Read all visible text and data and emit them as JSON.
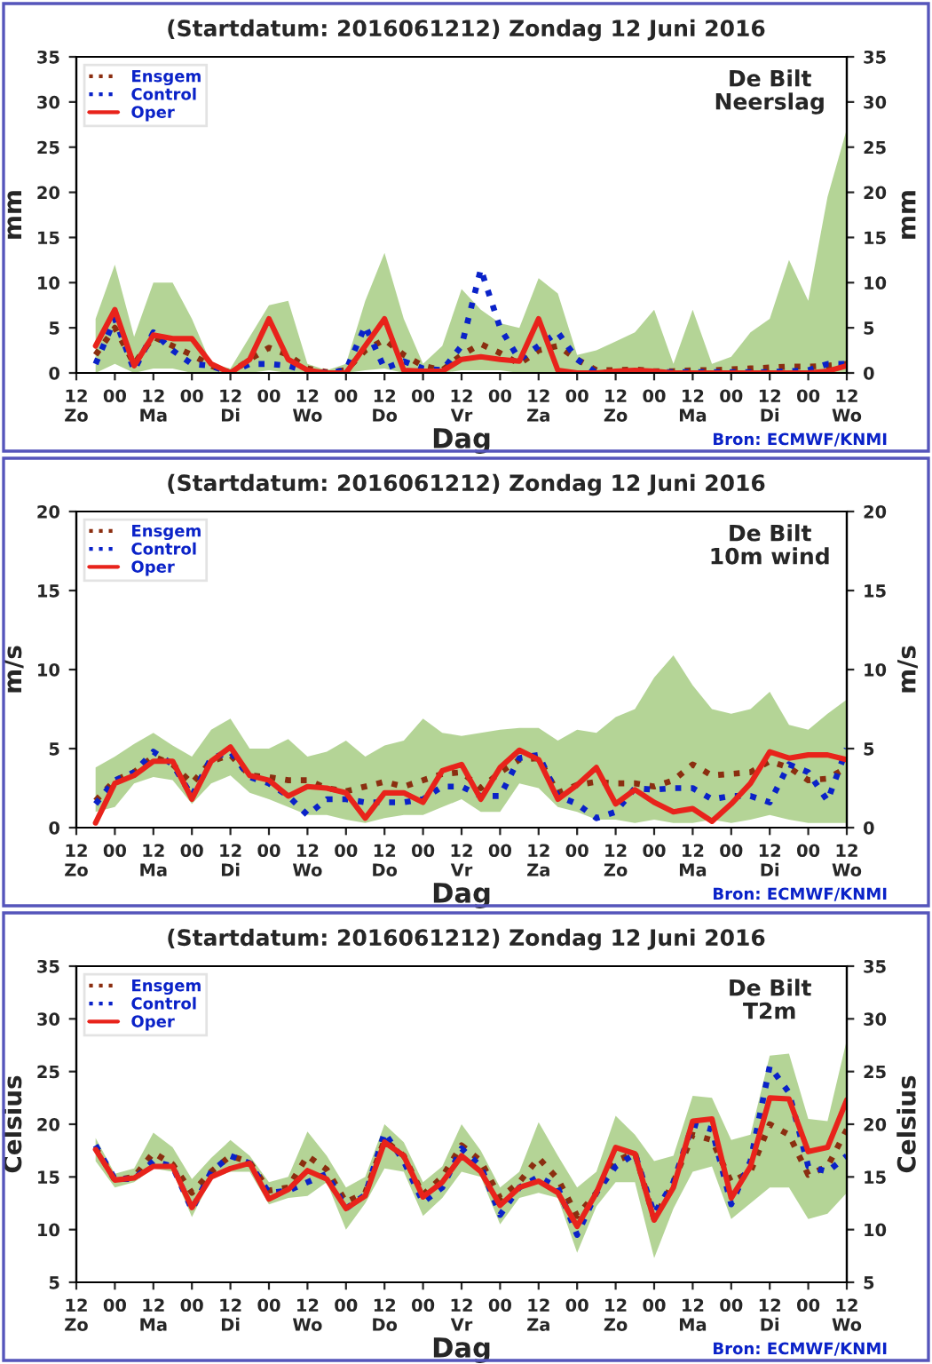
{
  "chart_data": [
    {
      "type": "line",
      "title": "(Startdatum: 2016061212) Zondag 12 Juni 2016",
      "xlabel": "Dag",
      "ylabel": "mm",
      "y2label": "mm",
      "annotations": [
        "De Bilt\nNeerslag",
        "Bron: ECMWF/KNMI"
      ],
      "x": [
        "2016-06-12T18:00",
        "2016-06-13T00:00",
        "2016-06-13T06:00",
        "2016-06-13T12:00",
        "2016-06-13T18:00",
        "2016-06-14T00:00",
        "2016-06-14T06:00",
        "2016-06-14T12:00",
        "2016-06-14T18:00",
        "2016-06-15T00:00",
        "2016-06-15T06:00",
        "2016-06-15T12:00",
        "2016-06-15T18:00",
        "2016-06-16T00:00",
        "2016-06-16T06:00",
        "2016-06-16T12:00",
        "2016-06-16T18:00",
        "2016-06-17T00:00",
        "2016-06-17T06:00",
        "2016-06-17T12:00",
        "2016-06-17T18:00",
        "2016-06-18T00:00",
        "2016-06-18T06:00",
        "2016-06-18T12:00",
        "2016-06-18T18:00",
        "2016-06-19T00:00",
        "2016-06-19T06:00",
        "2016-06-19T12:00",
        "2016-06-19T18:00",
        "2016-06-20T00:00",
        "2016-06-20T06:00",
        "2016-06-20T12:00",
        "2016-06-20T18:00",
        "2016-06-21T00:00",
        "2016-06-21T06:00",
        "2016-06-21T12:00",
        "2016-06-21T18:00",
        "2016-06-22T00:00",
        "2016-06-22T06:00",
        "2016-06-22T12:00"
      ],
      "xlim": [
        "2016-06-12T12:00",
        "2016-06-22T12:00"
      ],
      "xticks": [
        {
          "value": "2016-06-12T12:00",
          "label": "12\nZo"
        },
        {
          "value": "2016-06-13T00:00",
          "label": "00"
        },
        {
          "value": "2016-06-13T12:00",
          "label": "12\nMa"
        },
        {
          "value": "2016-06-14T00:00",
          "label": "00"
        },
        {
          "value": "2016-06-14T12:00",
          "label": "12\nDi"
        },
        {
          "value": "2016-06-15T00:00",
          "label": "00"
        },
        {
          "value": "2016-06-15T12:00",
          "label": "12\nWo"
        },
        {
          "value": "2016-06-16T00:00",
          "label": "00"
        },
        {
          "value": "2016-06-16T12:00",
          "label": "12\nDo"
        },
        {
          "value": "2016-06-17T00:00",
          "label": "00"
        },
        {
          "value": "2016-06-17T12:00",
          "label": "12\nVr"
        },
        {
          "value": "2016-06-18T00:00",
          "label": "00"
        },
        {
          "value": "2016-06-18T12:00",
          "label": "12\nZa"
        },
        {
          "value": "2016-06-19T00:00",
          "label": "00"
        },
        {
          "value": "2016-06-19T12:00",
          "label": "12\nZo"
        },
        {
          "value": "2016-06-20T00:00",
          "label": "00"
        },
        {
          "value": "2016-06-20T12:00",
          "label": "12\nMa"
        },
        {
          "value": "2016-06-21T00:00",
          "label": "00"
        },
        {
          "value": "2016-06-21T12:00",
          "label": "12\nDi"
        },
        {
          "value": "2016-06-22T00:00",
          "label": "00"
        },
        {
          "value": "2016-06-22T12:00",
          "label": "12\nWo"
        }
      ],
      "ylim": [
        0,
        35
      ],
      "yticks": [
        0,
        5,
        10,
        15,
        20,
        25,
        30,
        35
      ],
      "y2lim": [
        0,
        35
      ],
      "y2ticks": [
        0,
        5,
        10,
        15,
        20,
        25,
        30,
        35
      ],
      "legend": "top left",
      "grid": false,
      "marker": "none",
      "series": [
        {
          "name": "Ensgem",
          "color": "#8b2e10",
          "line_style": "dotted",
          "values": [
            2,
            5,
            1,
            4,
            3,
            2,
            0.8,
            0,
            1.5,
            2.8,
            2,
            0.5,
            0.1,
            0.3,
            2.5,
            3.7,
            2,
            0.8,
            0.3,
            2,
            3.2,
            2.2,
            1,
            2.5,
            3,
            1.5,
            0.3,
            0.3,
            0.4,
            0.2,
            0.2,
            0.3,
            0.3,
            0.4,
            0.5,
            0.6,
            0.7,
            0.7,
            0.8,
            1
          ],
          "lower": [
            0,
            1,
            0,
            0.5,
            0.5,
            0,
            0,
            0,
            0,
            0.3,
            0,
            0,
            0,
            0,
            0.3,
            0.5,
            0,
            0,
            0,
            0.3,
            0.3,
            0.3,
            0,
            0,
            0,
            0,
            0,
            0,
            0,
            0,
            0,
            0,
            0,
            0,
            0,
            0,
            0,
            0,
            0,
            0
          ],
          "upper": [
            6,
            12,
            4,
            10,
            10,
            6,
            1,
            0.5,
            4,
            7.5,
            8,
            1,
            0.3,
            1,
            8,
            13.3,
            6,
            1,
            3,
            9.3,
            7,
            5.5,
            5,
            10.5,
            8.8,
            2,
            2.5,
            3.5,
            4.5,
            7,
            1,
            7,
            1,
            1.8,
            4.5,
            6,
            12.5,
            8,
            19.5,
            27
          ]
        },
        {
          "name": "Control",
          "color": "#0a22c8",
          "line_style": "dotted",
          "values": [
            1,
            6,
            0.3,
            4.5,
            2.5,
            1,
            0.8,
            0,
            1,
            1,
            0.8,
            0.2,
            0,
            0.3,
            5.2,
            0.5,
            1.3,
            0.5,
            0.3,
            3,
            11.5,
            5,
            1.5,
            3,
            4.5,
            1.5,
            0,
            0.1,
            0.1,
            0.1,
            0.1,
            0.1,
            0.1,
            0.1,
            0.1,
            0.1,
            0.2,
            0.3,
            1,
            1
          ]
        },
        {
          "name": "Oper",
          "color": "#e8231b",
          "line_style": "solid",
          "values": [
            3,
            7,
            0.8,
            4.2,
            3.8,
            3.8,
            1,
            0,
            1.5,
            6,
            1.5,
            0.3,
            0,
            0,
            3,
            6,
            0.3,
            0.2,
            0.2,
            1.5,
            1.8,
            1.5,
            1.3,
            6,
            0.3,
            0,
            0,
            0.2,
            0.3,
            0.2,
            0,
            0,
            0,
            0,
            0,
            0,
            0,
            0,
            0.2,
            0.8
          ]
        }
      ]
    },
    {
      "type": "line",
      "title": "(Startdatum: 2016061212) Zondag 12 Juni 2016",
      "xlabel": "Dag",
      "ylabel": "m/s",
      "y2label": "m/s",
      "annotations": [
        "De Bilt\n10m wind",
        "Bron: ECMWF/KNMI"
      ],
      "x": [
        "2016-06-12T18:00",
        "2016-06-13T00:00",
        "2016-06-13T06:00",
        "2016-06-13T12:00",
        "2016-06-13T18:00",
        "2016-06-14T00:00",
        "2016-06-14T06:00",
        "2016-06-14T12:00",
        "2016-06-14T18:00",
        "2016-06-15T00:00",
        "2016-06-15T06:00",
        "2016-06-15T12:00",
        "2016-06-15T18:00",
        "2016-06-16T00:00",
        "2016-06-16T06:00",
        "2016-06-16T12:00",
        "2016-06-16T18:00",
        "2016-06-17T00:00",
        "2016-06-17T06:00",
        "2016-06-17T12:00",
        "2016-06-17T18:00",
        "2016-06-18T00:00",
        "2016-06-18T06:00",
        "2016-06-18T12:00",
        "2016-06-18T18:00",
        "2016-06-19T00:00",
        "2016-06-19T06:00",
        "2016-06-19T12:00",
        "2016-06-19T18:00",
        "2016-06-20T00:00",
        "2016-06-20T06:00",
        "2016-06-20T12:00",
        "2016-06-20T18:00",
        "2016-06-21T00:00",
        "2016-06-21T06:00",
        "2016-06-21T12:00",
        "2016-06-21T18:00",
        "2016-06-22T00:00",
        "2016-06-22T06:00",
        "2016-06-22T12:00"
      ],
      "xlim": [
        "2016-06-12T12:00",
        "2016-06-22T12:00"
      ],
      "xticks": [
        {
          "value": "2016-06-12T12:00",
          "label": "12\nZo"
        },
        {
          "value": "2016-06-13T00:00",
          "label": "00"
        },
        {
          "value": "2016-06-13T12:00",
          "label": "12\nMa"
        },
        {
          "value": "2016-06-14T00:00",
          "label": "00"
        },
        {
          "value": "2016-06-14T12:00",
          "label": "12\nDi"
        },
        {
          "value": "2016-06-15T00:00",
          "label": "00"
        },
        {
          "value": "2016-06-15T12:00",
          "label": "12\nWo"
        },
        {
          "value": "2016-06-16T00:00",
          "label": "00"
        },
        {
          "value": "2016-06-16T12:00",
          "label": "12\nDo"
        },
        {
          "value": "2016-06-17T00:00",
          "label": "00"
        },
        {
          "value": "2016-06-17T12:00",
          "label": "12\nVr"
        },
        {
          "value": "2016-06-18T00:00",
          "label": "00"
        },
        {
          "value": "2016-06-18T12:00",
          "label": "12\nZa"
        },
        {
          "value": "2016-06-19T00:00",
          "label": "00"
        },
        {
          "value": "2016-06-19T12:00",
          "label": "12\nZo"
        },
        {
          "value": "2016-06-20T00:00",
          "label": "00"
        },
        {
          "value": "2016-06-20T12:00",
          "label": "12\nMa"
        },
        {
          "value": "2016-06-21T00:00",
          "label": "00"
        },
        {
          "value": "2016-06-21T12:00",
          "label": "12\nDi"
        },
        {
          "value": "2016-06-22T00:00",
          "label": "00"
        },
        {
          "value": "2016-06-22T12:00",
          "label": "12\nWo"
        }
      ],
      "ylim": [
        0,
        20
      ],
      "yticks": [
        0,
        5,
        10,
        15,
        20
      ],
      "y2lim": [
        0,
        20
      ],
      "y2ticks": [
        0,
        5,
        10,
        15,
        20
      ],
      "legend": "top left",
      "grid": false,
      "marker": "none",
      "series": [
        {
          "name": "Ensgem",
          "color": "#8b2e10",
          "line_style": "dotted",
          "values": [
            1.7,
            3,
            3.5,
            4.5,
            4,
            2.8,
            4.2,
            4.6,
            3.3,
            3.2,
            3,
            3,
            2.5,
            2.3,
            2.6,
            2.9,
            2.6,
            3,
            3.4,
            3.5,
            2.5,
            3.5,
            4.3,
            4.4,
            2.2,
            2.7,
            2.9,
            2.8,
            2.8,
            2.6,
            3,
            4,
            3.3,
            3.4,
            3.5,
            4.2,
            3.8,
            3,
            3.1,
            3.8
          ],
          "lower": [
            1,
            1.3,
            2.8,
            3.2,
            3,
            1.5,
            2.8,
            3.3,
            2.2,
            1.8,
            1.3,
            0.8,
            0.8,
            0.5,
            0.3,
            0.6,
            0.8,
            0.8,
            1.3,
            1.8,
            1,
            1,
            2.8,
            2.5,
            1.3,
            1,
            0.5,
            0.5,
            0.3,
            0.5,
            0.3,
            0.3,
            0.5,
            0.3,
            0.5,
            0.8,
            0.5,
            0.3,
            0.3,
            0.3
          ],
          "upper": [
            3.8,
            4.5,
            5.3,
            6,
            5.2,
            4.5,
            6.2,
            6.9,
            5,
            5,
            5.6,
            4.5,
            4.8,
            5.5,
            4.5,
            5.2,
            5.5,
            6.9,
            6,
            5.8,
            6,
            6.2,
            6.3,
            6.3,
            5.5,
            6.2,
            6,
            7,
            7.5,
            9.5,
            10.9,
            9,
            7.5,
            7.2,
            7.5,
            8.6,
            6.5,
            6.2,
            7.2,
            8.1
          ]
        },
        {
          "name": "Control",
          "color": "#0a22c8",
          "line_style": "dotted",
          "values": [
            1.5,
            3,
            3.5,
            4.8,
            4,
            2,
            4.4,
            4.8,
            3.2,
            2.8,
            2,
            0.8,
            1.8,
            1.8,
            1.6,
            1.6,
            1.6,
            1.8,
            2.6,
            2.6,
            2,
            2,
            4.4,
            4.6,
            2,
            1.5,
            0.6,
            1,
            2.5,
            2.4,
            2.5,
            2.5,
            1.8,
            2,
            2,
            1.6,
            4,
            3.5,
            1.7,
            5
          ]
        },
        {
          "name": "Oper",
          "color": "#e8231b",
          "line_style": "solid",
          "values": [
            0.3,
            2.8,
            3.3,
            4.2,
            4.2,
            1.8,
            4.2,
            5.1,
            3.3,
            3,
            2,
            2.6,
            2.5,
            2.2,
            0.6,
            2.2,
            2.2,
            1.6,
            3.6,
            4,
            1.8,
            3.8,
            4.9,
            4.3,
            1.8,
            2.7,
            3.8,
            1.5,
            2.4,
            1.6,
            1,
            1.2,
            0.4,
            1.5,
            2.8,
            4.8,
            4.4,
            4.6,
            4.6,
            4.3
          ]
        }
      ]
    },
    {
      "type": "line",
      "title": "(Startdatum: 2016061212) Zondag 12 Juni 2016",
      "xlabel": "Dag",
      "ylabel": "Celsius",
      "y2label": "Celsius",
      "annotations": [
        "De Bilt\nT2m",
        "Bron: ECMWF/KNMI"
      ],
      "x": [
        "2016-06-12T18:00",
        "2016-06-13T00:00",
        "2016-06-13T06:00",
        "2016-06-13T12:00",
        "2016-06-13T18:00",
        "2016-06-14T00:00",
        "2016-06-14T06:00",
        "2016-06-14T12:00",
        "2016-06-14T18:00",
        "2016-06-15T00:00",
        "2016-06-15T06:00",
        "2016-06-15T12:00",
        "2016-06-15T18:00",
        "2016-06-16T00:00",
        "2016-06-16T06:00",
        "2016-06-16T12:00",
        "2016-06-16T18:00",
        "2016-06-17T00:00",
        "2016-06-17T06:00",
        "2016-06-17T12:00",
        "2016-06-17T18:00",
        "2016-06-18T00:00",
        "2016-06-18T06:00",
        "2016-06-18T12:00",
        "2016-06-18T18:00",
        "2016-06-19T00:00",
        "2016-06-19T06:00",
        "2016-06-19T12:00",
        "2016-06-19T18:00",
        "2016-06-20T00:00",
        "2016-06-20T06:00",
        "2016-06-20T12:00",
        "2016-06-20T18:00",
        "2016-06-21T00:00",
        "2016-06-21T06:00",
        "2016-06-21T12:00",
        "2016-06-21T18:00",
        "2016-06-22T00:00",
        "2016-06-22T06:00",
        "2016-06-22T12:00"
      ],
      "xlim": [
        "2016-06-12T12:00",
        "2016-06-22T12:00"
      ],
      "xticks": [
        {
          "value": "2016-06-12T12:00",
          "label": "12\nZo"
        },
        {
          "value": "2016-06-13T00:00",
          "label": "00"
        },
        {
          "value": "2016-06-13T12:00",
          "label": "12\nMa"
        },
        {
          "value": "2016-06-14T00:00",
          "label": "00"
        },
        {
          "value": "2016-06-14T12:00",
          "label": "12\nDi"
        },
        {
          "value": "2016-06-15T00:00",
          "label": "00"
        },
        {
          "value": "2016-06-15T12:00",
          "label": "12\nWo"
        },
        {
          "value": "2016-06-16T00:00",
          "label": "00"
        },
        {
          "value": "2016-06-16T12:00",
          "label": "12\nDo"
        },
        {
          "value": "2016-06-17T00:00",
          "label": "00"
        },
        {
          "value": "2016-06-17T12:00",
          "label": "12\nVr"
        },
        {
          "value": "2016-06-18T00:00",
          "label": "00"
        },
        {
          "value": "2016-06-18T12:00",
          "label": "12\nZa"
        },
        {
          "value": "2016-06-19T00:00",
          "label": "00"
        },
        {
          "value": "2016-06-19T12:00",
          "label": "12\nZo"
        },
        {
          "value": "2016-06-20T00:00",
          "label": "00"
        },
        {
          "value": "2016-06-20T12:00",
          "label": "12\nMa"
        },
        {
          "value": "2016-06-21T00:00",
          "label": "00"
        },
        {
          "value": "2016-06-21T12:00",
          "label": "12\nDi"
        },
        {
          "value": "2016-06-22T00:00",
          "label": "00"
        },
        {
          "value": "2016-06-22T12:00",
          "label": "12\nWo"
        }
      ],
      "ylim": [
        5,
        35
      ],
      "yticks": [
        5,
        10,
        15,
        20,
        25,
        30,
        35
      ],
      "y2lim": [
        5,
        35
      ],
      "y2ticks": [
        5,
        10,
        15,
        20,
        25,
        30,
        35
      ],
      "legend": "top left",
      "grid": false,
      "marker": "none",
      "series": [
        {
          "name": "Ensgem",
          "color": "#8b2e10",
          "line_style": "dotted",
          "values": [
            17.8,
            14.7,
            15,
            17.3,
            16.2,
            13.5,
            15.5,
            17,
            16.4,
            13.7,
            14,
            17,
            15.7,
            12.6,
            13.5,
            18.5,
            17,
            13.3,
            15,
            18,
            16.5,
            13,
            14.5,
            16.8,
            14.8,
            11.3,
            13.5,
            16.5,
            17.3,
            11,
            14.5,
            19,
            18.5,
            14.5,
            15.5,
            20,
            19,
            15.2,
            16,
            19.5
          ],
          "lower": [
            16.5,
            14,
            14.5,
            15.8,
            15.5,
            11.2,
            14.8,
            15.5,
            15.5,
            12.4,
            13,
            13.2,
            14.5,
            10,
            12.5,
            15.8,
            15.5,
            11.3,
            13,
            15.5,
            15,
            10.5,
            13,
            13.5,
            13,
            7.8,
            12.2,
            14.5,
            14.5,
            7.3,
            12,
            15.5,
            16,
            11,
            12.5,
            14,
            14,
            11,
            11.5,
            13.5
          ],
          "upper": [
            18.7,
            15.3,
            15.8,
            19.2,
            17.8,
            14.8,
            16.8,
            18.5,
            17,
            14.5,
            15,
            19.3,
            17,
            14,
            15,
            20,
            18.3,
            14.5,
            16,
            20,
            17.5,
            14,
            15.5,
            20.2,
            17,
            14,
            15.5,
            20.8,
            19,
            16.5,
            17,
            22.7,
            22.5,
            18.5,
            19,
            26.5,
            26.7,
            20.5,
            20.3,
            28
          ]
        },
        {
          "name": "Control",
          "color": "#0a22c8",
          "line_style": "dotted",
          "values": [
            18,
            14.8,
            14.8,
            16.5,
            16,
            11.9,
            15.5,
            17,
            16.3,
            13.5,
            13.7,
            14.5,
            15.3,
            12,
            13.3,
            19.2,
            16.5,
            12.6,
            14,
            17.7,
            16,
            11.4,
            14,
            15,
            14,
            9.5,
            13.5,
            16,
            17.2,
            11.5,
            14.5,
            20,
            19.5,
            12.4,
            16.5,
            25.5,
            23,
            16,
            15.5,
            17
          ]
        },
        {
          "name": "Oper",
          "color": "#e8231b",
          "line_style": "solid",
          "values": [
            17.6,
            14.7,
            14.9,
            16,
            16,
            12.1,
            15,
            15.8,
            16.3,
            12.9,
            13.8,
            15.6,
            14.8,
            12,
            13.2,
            18.3,
            17,
            13.1,
            14.5,
            17,
            15.5,
            12.3,
            14,
            14.6,
            13.5,
            10.3,
            13.5,
            17.8,
            17.2,
            10.9,
            14,
            20.3,
            20.5,
            13,
            16,
            22.5,
            22.4,
            17.4,
            17.8,
            22.3
          ]
        }
      ]
    }
  ]
}
